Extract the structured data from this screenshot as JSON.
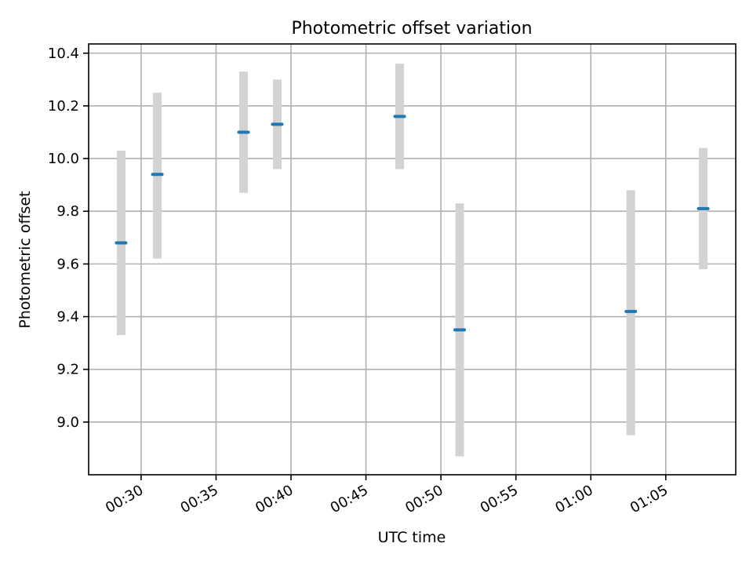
{
  "colors": {
    "marker": "#1f77b4",
    "errorbar": "#d3d3d3",
    "grid": "#b0b0b0"
  },
  "chart_data": {
    "type": "scatter",
    "title": "Photometric offset variation",
    "xlabel": "UTC time",
    "ylabel": "Photometric offset",
    "x_is_time": true,
    "xlim": [
      "00:26:30",
      "01:09:40"
    ],
    "ylim": [
      8.8,
      10.435
    ],
    "grid": true,
    "error_bars": true,
    "x_ticks": [
      "00:30",
      "00:35",
      "00:40",
      "00:45",
      "00:50",
      "00:55",
      "01:00",
      "01:05"
    ],
    "y_ticks": [
      "9.0",
      "9.2",
      "9.4",
      "9.6",
      "9.8",
      "10.0",
      "10.2",
      "10.4"
    ],
    "series": [
      {
        "points": [
          {
            "x": "00:28:40",
            "y": 9.68,
            "lower": 9.33,
            "upper": 10.03
          },
          {
            "x": "00:31:05",
            "y": 9.94,
            "lower": 9.62,
            "upper": 10.25
          },
          {
            "x": "00:36:50",
            "y": 10.1,
            "lower": 9.87,
            "upper": 10.33
          },
          {
            "x": "00:39:05",
            "y": 10.13,
            "lower": 9.96,
            "upper": 10.3
          },
          {
            "x": "00:47:15",
            "y": 10.16,
            "lower": 9.96,
            "upper": 10.36
          },
          {
            "x": "00:51:15",
            "y": 9.35,
            "lower": 8.87,
            "upper": 9.83
          },
          {
            "x": "01:02:40",
            "y": 9.42,
            "lower": 8.95,
            "upper": 9.88
          },
          {
            "x": "01:07:30",
            "y": 9.81,
            "lower": 9.58,
            "upper": 10.04
          }
        ]
      }
    ]
  }
}
